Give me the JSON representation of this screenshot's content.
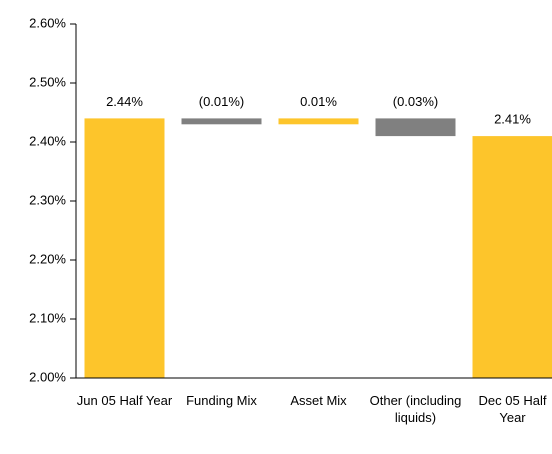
{
  "chart_data": {
    "type": "waterfall",
    "categories": [
      "Jun 05 Half Year",
      "Funding Mix",
      "Asset Mix",
      "Other (including liquids)",
      "Dec 05 Half Year"
    ],
    "values": [
      2.44,
      -0.01,
      0.01,
      -0.03,
      2.41
    ],
    "value_labels": [
      "2.44%",
      "(0.01%)",
      "0.01%",
      "(0.03%)",
      "2.41%"
    ],
    "measure": [
      "absolute",
      "relative",
      "relative",
      "relative",
      "total"
    ],
    "colors": [
      "#fdc52b",
      "#808080",
      "#fdc52b",
      "#808080",
      "#fdc52b"
    ],
    "ylim": [
      2.0,
      2.6
    ],
    "yticks": [
      {
        "value": 2.0,
        "label": "2.00%"
      },
      {
        "value": 2.1,
        "label": "2.10%"
      },
      {
        "value": 2.2,
        "label": "2.20%"
      },
      {
        "value": 2.3,
        "label": "2.30%"
      },
      {
        "value": 2.4,
        "label": "2.40%"
      },
      {
        "value": 2.5,
        "label": "2.50%"
      },
      {
        "value": 2.6,
        "label": "2.60%"
      }
    ],
    "grid": false
  }
}
